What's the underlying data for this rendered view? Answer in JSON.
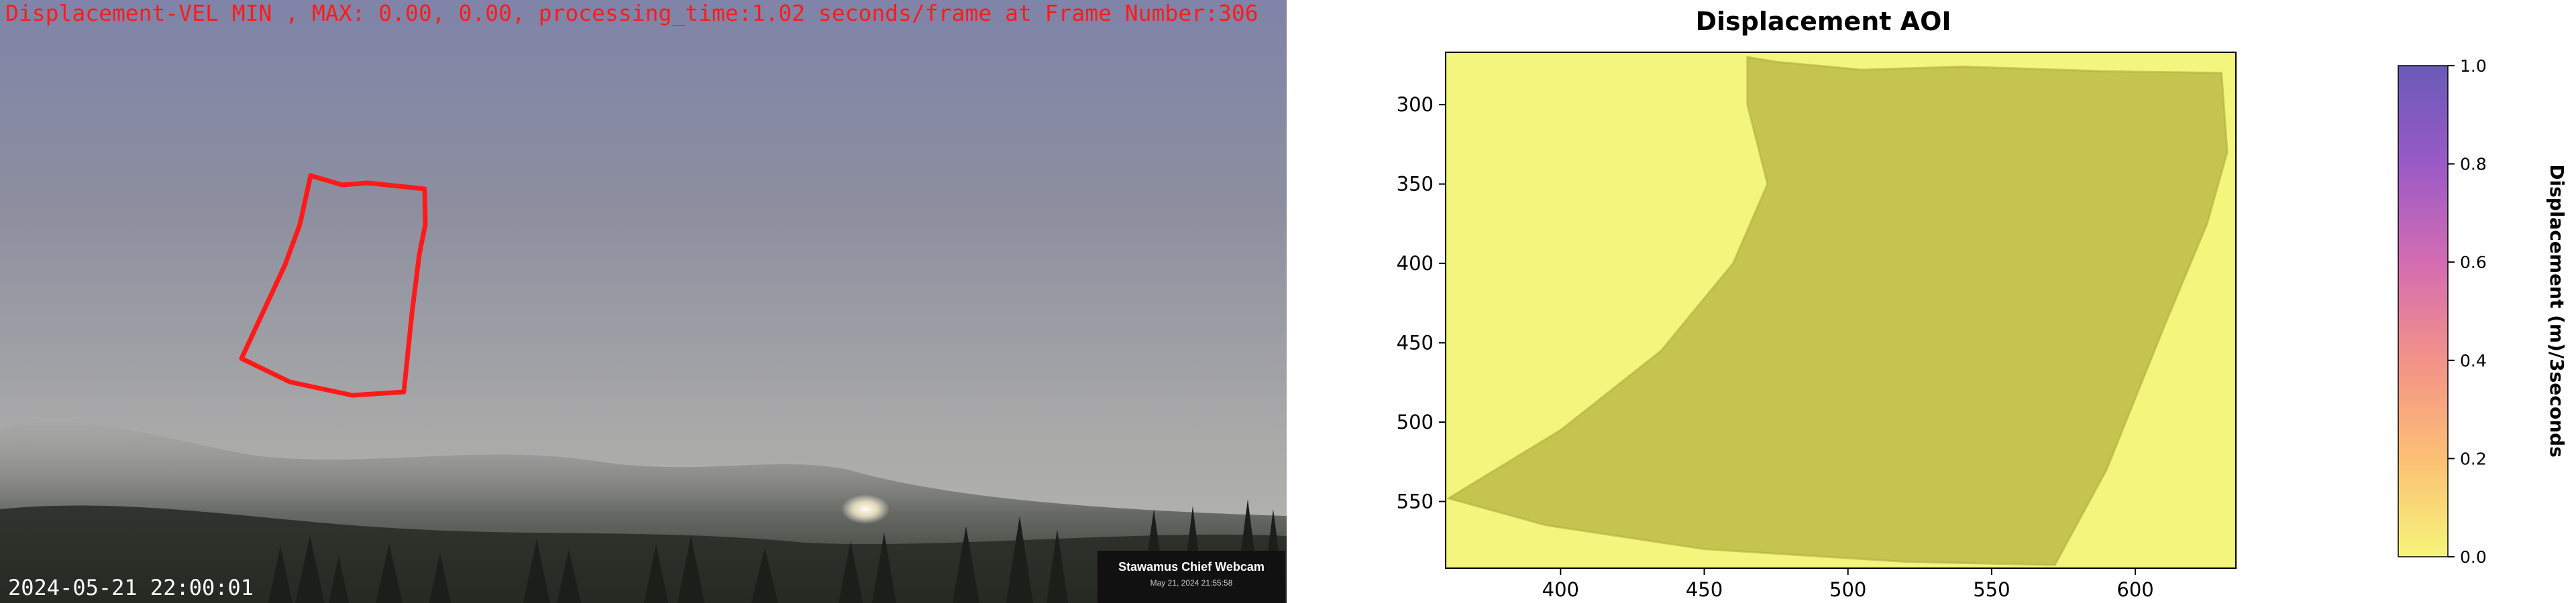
{
  "webcam": {
    "overlay_text": "Displacement-VEL MIN , MAX: 0.00, 0.00, processing_time:1.02 seconds/frame at Frame Number:306",
    "timestamp": "2024-05-21 22:00:01",
    "badge_title": "Stawamus Chief Webcam",
    "badge_subtitle": "May 21, 2024 21:55:58",
    "aoi_color": "#ff1a1a"
  },
  "chart_data": {
    "type": "heatmap",
    "title": "Displacement AOI",
    "xlabel": "",
    "ylabel": "",
    "xlim": [
      360,
      635
    ],
    "ylim": [
      592,
      267
    ],
    "x_ticks": [
      "400",
      "450",
      "500",
      "550",
      "600"
    ],
    "x_tick_values": [
      400,
      450,
      500,
      550,
      600
    ],
    "y_ticks": [
      "300",
      "350",
      "400",
      "450",
      "500",
      "550"
    ],
    "y_tick_values": [
      300,
      350,
      400,
      450,
      500,
      550
    ],
    "aoi_polygon": [
      [
        465,
        270
      ],
      [
        475,
        273
      ],
      [
        505,
        278
      ],
      [
        540,
        276
      ],
      [
        590,
        279
      ],
      [
        630,
        280
      ],
      [
        632,
        330
      ],
      [
        625,
        375
      ],
      [
        610,
        440
      ],
      [
        590,
        530
      ],
      [
        572,
        590
      ],
      [
        520,
        588
      ],
      [
        450,
        580
      ],
      [
        395,
        565
      ],
      [
        361,
        548
      ],
      [
        400,
        505
      ],
      [
        435,
        455
      ],
      [
        460,
        400
      ],
      [
        472,
        350
      ],
      [
        465,
        300
      ]
    ],
    "values_inside_aoi": 0.0,
    "colorbar": {
      "label": "Displacement (m)/3seconds",
      "min": 0.0,
      "max": 1.0,
      "ticks": [
        "0.0",
        "0.2",
        "0.4",
        "0.6",
        "0.8",
        "1.0"
      ],
      "tick_values": [
        0.0,
        0.2,
        0.4,
        0.6,
        0.8,
        1.0
      ],
      "colormap": [
        "#f6f579",
        "#fcbf74",
        "#f39288",
        "#d36cb2",
        "#9a5ac6",
        "#6a5ab8"
      ]
    },
    "background_color": "#f3f57c",
    "aoi_fill_color": "#c5c44e"
  }
}
